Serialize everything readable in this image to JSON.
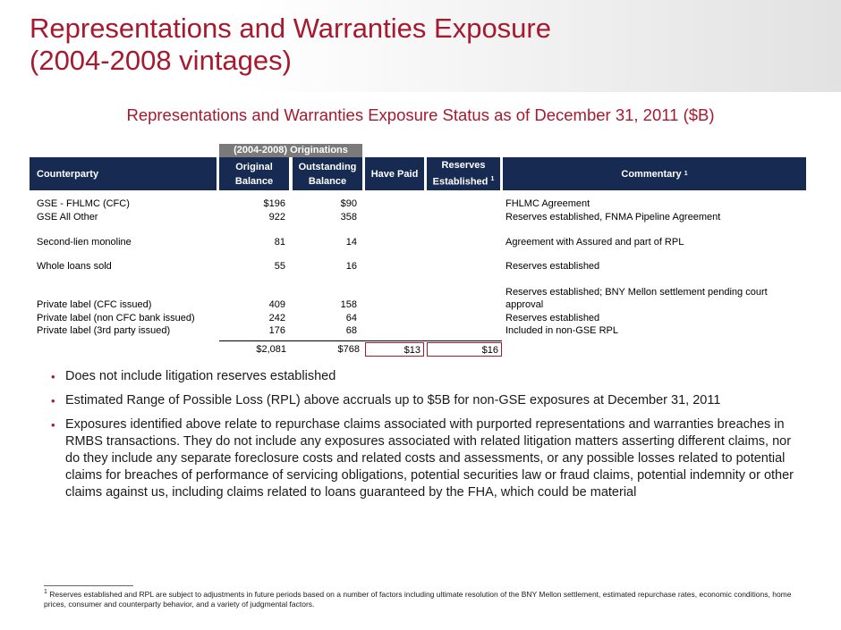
{
  "header": {
    "title_line1": "Representations and Warranties Exposure",
    "title_line2": "(2004-2008 vintages)"
  },
  "subtitle": "Representations and Warranties Exposure Status as of December 31, 2011 ($B)",
  "table": {
    "group_header": "(2004-2008) Originations",
    "columns": {
      "counterparty": "Counterparty",
      "original_1": "Original",
      "original_2": "Balance",
      "outstanding_1": "Outstanding",
      "outstanding_2": "Balance",
      "have_paid": "Have Paid",
      "reserves_1": "Reserves",
      "reserves_2": "Established",
      "commentary": "Commentary",
      "footnote_mark": "1"
    },
    "rows": [
      {
        "name": "GSE - FHLMC (CFC)",
        "original": "$196",
        "outstanding": "$90",
        "commentary": "FHLMC Agreement"
      },
      {
        "name": "GSE All Other",
        "original": "922",
        "outstanding": "358",
        "commentary": "Reserves established, FNMA Pipeline Agreement"
      },
      {
        "name": "Second-lien monoline",
        "original": "81",
        "outstanding": "14",
        "commentary": "Agreement with Assured and part of RPL"
      },
      {
        "name": "Whole loans sold",
        "original": "55",
        "outstanding": "16",
        "commentary": "Reserves established"
      },
      {
        "name": "Private label (CFC issued)",
        "original": "409",
        "outstanding": "158",
        "commentary_1": "Reserves established; BNY Mellon settlement pending court",
        "commentary_2": "approval"
      },
      {
        "name": "Private label (non CFC bank issued)",
        "original": "242",
        "outstanding": "64",
        "commentary": "Reserves established"
      },
      {
        "name": "Private label (3rd party issued)",
        "original": "176",
        "outstanding": "68",
        "commentary": "Included in non-GSE RPL"
      }
    ],
    "totals": {
      "original": "$2,081",
      "outstanding": "$768",
      "have_paid": "$13",
      "reserves": "$16"
    }
  },
  "bullets": [
    "Does not include litigation reserves established",
    "Estimated Range of Possible Loss (RPL) above accruals up to $5B for non-GSE exposures at December 31, 2011",
    "Exposures identified above relate to repurchase claims associated with purported representations and warranties breaches in RMBS transactions. They do not include any exposures associated with related litigation matters asserting different claims, nor do they include any separate foreclosure costs and related costs and assessments, or any possible losses related to potential claims for breaches of performance of servicing obligations, potential securities law or fraud claims, potential indemnity or other claims against us, including claims related to loans guaranteed by the FHA, which could be material"
  ],
  "bullet_marker": "•",
  "footnote": {
    "mark": "1",
    "text": "Reserves established and RPL are subject to adjustments in future periods based on a number of factors including ultimate resolution of the BNY Mellon settlement, estimated repurchase rates, economic conditions, home prices, consumer and counterparty behavior, and a variety of judgmental factors."
  },
  "colors": {
    "title_red": "#a6192e",
    "header_navy": "#172a52",
    "group_gray": "#7a7a7a"
  }
}
